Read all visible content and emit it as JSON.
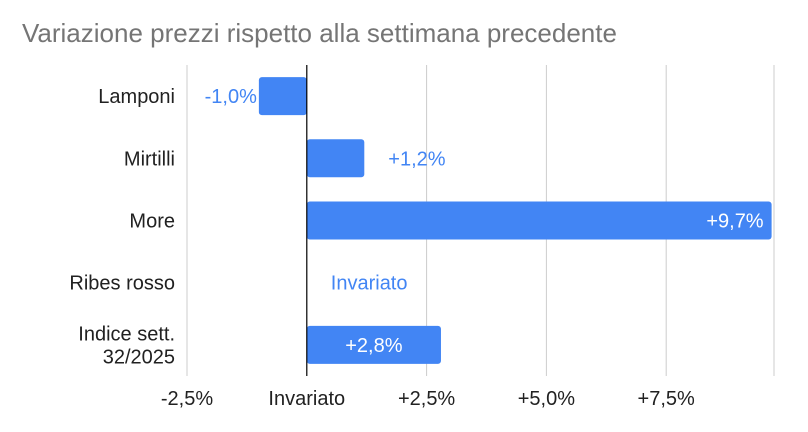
{
  "chart_data": {
    "type": "bar",
    "orientation": "horizontal",
    "title": "Variazione prezzi rispetto alla settimana precedente",
    "categories": [
      {
        "lines": [
          "Lamponi"
        ]
      },
      {
        "lines": [
          "Mirtilli"
        ]
      },
      {
        "lines": [
          "More"
        ]
      },
      {
        "lines": [
          "Ribes rosso"
        ]
      },
      {
        "lines": [
          "Indice sett.",
          "32/2025"
        ]
      }
    ],
    "values": [
      -1.0,
      1.2,
      9.7,
      0.0,
      2.8
    ],
    "data_labels": [
      "-1,0%",
      "+1,2%",
      "+9,7%",
      "Invariato",
      "+2,8%"
    ],
    "xlim": [
      -2.5,
      9.75
    ],
    "xticks": [
      -2.5,
      0,
      2.5,
      5.0,
      7.5
    ],
    "xtick_labels": [
      "-2,5%",
      "Invariato",
      "+2,5%",
      "+5,0%",
      "+7,5%"
    ],
    "grid": true,
    "colors": {
      "bar": "#4285f4",
      "grid": "#cccccc",
      "zero_line": "#000000",
      "label_outside": "#4285f4",
      "label_inside": "#ffffff"
    }
  }
}
